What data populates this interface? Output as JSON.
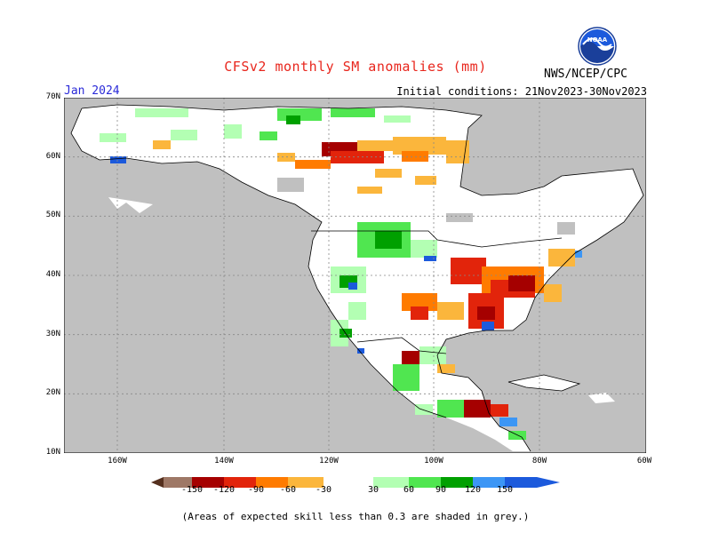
{
  "title": "CFSv2 monthly SM anomalies (mm)",
  "month": "Jan 2024",
  "initial_conditions": "Initial conditions: 21Nov2023-30Nov2023",
  "agency": "NWS/NCEP/CPC",
  "logo_text": "NOAA",
  "lat_labels": [
    "70N",
    "60N",
    "50N",
    "40N",
    "30N",
    "20N",
    "10N"
  ],
  "lon_labels": [
    "160W",
    "140W",
    "120W",
    "100W",
    "80W",
    "60W"
  ],
  "legend": {
    "values": [
      "-150",
      "-120",
      "-90",
      "-60",
      "-30",
      "30",
      "60",
      "90",
      "120",
      "150"
    ],
    "colors": [
      "#55301e",
      "#9e7866",
      "#a50000",
      "#e2240b",
      "#ff7b00",
      "#fbb63c",
      "#ffffff",
      "#b3ffb3",
      "#50e650",
      "#00a000",
      "#3c96f5",
      "#1c5adc"
    ]
  },
  "note": "(Areas of expected skill less than 0.3 are shaded in grey.)"
}
